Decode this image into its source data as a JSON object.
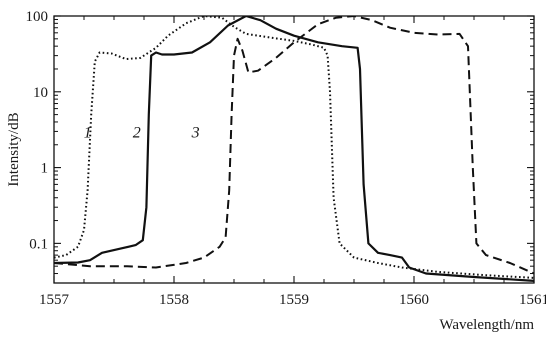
{
  "chart_data": {
    "type": "line",
    "title": "",
    "xlabel": "Wavelength/nm",
    "ylabel": "Intensity/dB",
    "xlim": [
      1557,
      1561
    ],
    "ylim": [
      0.03,
      100
    ],
    "yscale": "log",
    "grid": false,
    "x_ticks": [
      1557,
      1558,
      1559,
      1560,
      1561
    ],
    "y_ticks": [
      0.1,
      1,
      10,
      100
    ],
    "y_tick_labels": [
      "0.1",
      "1",
      "10",
      "100"
    ],
    "series": [
      {
        "name": "1",
        "line_style": "dotted",
        "color": "#111111",
        "label_at": [
          1557.28,
          2.5
        ],
        "points": [
          [
            1557.0,
            0.065
          ],
          [
            1557.1,
            0.07
          ],
          [
            1557.2,
            0.09
          ],
          [
            1557.25,
            0.15
          ],
          [
            1557.28,
            0.5
          ],
          [
            1557.31,
            5
          ],
          [
            1557.34,
            25
          ],
          [
            1557.38,
            33
          ],
          [
            1557.48,
            32
          ],
          [
            1557.6,
            27
          ],
          [
            1557.72,
            28
          ],
          [
            1557.85,
            38
          ],
          [
            1557.95,
            55
          ],
          [
            1558.1,
            80
          ],
          [
            1558.25,
            100
          ],
          [
            1558.4,
            95
          ],
          [
            1558.5,
            72
          ],
          [
            1558.6,
            58
          ],
          [
            1558.8,
            52
          ],
          [
            1559.0,
            47
          ],
          [
            1559.15,
            42
          ],
          [
            1559.25,
            38
          ],
          [
            1559.28,
            30
          ],
          [
            1559.3,
            10
          ],
          [
            1559.33,
            0.4
          ],
          [
            1559.38,
            0.1
          ],
          [
            1559.5,
            0.065
          ],
          [
            1559.7,
            0.055
          ],
          [
            1559.9,
            0.048
          ],
          [
            1560.2,
            0.042
          ],
          [
            1560.6,
            0.038
          ],
          [
            1561.0,
            0.035
          ]
        ]
      },
      {
        "name": "2",
        "line_style": "solid",
        "color": "#111111",
        "label_at": [
          1557.69,
          2.5
        ],
        "points": [
          [
            1557.0,
            0.055
          ],
          [
            1557.2,
            0.056
          ],
          [
            1557.3,
            0.06
          ],
          [
            1557.4,
            0.075
          ],
          [
            1557.55,
            0.085
          ],
          [
            1557.68,
            0.095
          ],
          [
            1557.74,
            0.11
          ],
          [
            1557.77,
            0.3
          ],
          [
            1557.79,
            5
          ],
          [
            1557.81,
            30
          ],
          [
            1557.85,
            33
          ],
          [
            1557.9,
            31
          ],
          [
            1558.0,
            31
          ],
          [
            1558.15,
            33
          ],
          [
            1558.3,
            45
          ],
          [
            1558.45,
            75
          ],
          [
            1558.6,
            100
          ],
          [
            1558.72,
            88
          ],
          [
            1558.85,
            68
          ],
          [
            1559.0,
            55
          ],
          [
            1559.2,
            45
          ],
          [
            1559.4,
            40
          ],
          [
            1559.53,
            38
          ],
          [
            1559.55,
            20
          ],
          [
            1559.58,
            0.6
          ],
          [
            1559.62,
            0.1
          ],
          [
            1559.7,
            0.075
          ],
          [
            1559.8,
            0.07
          ],
          [
            1559.9,
            0.065
          ],
          [
            1559.96,
            0.048
          ],
          [
            1560.1,
            0.04
          ],
          [
            1560.5,
            0.036
          ],
          [
            1561.0,
            0.032
          ]
        ]
      },
      {
        "name": "3",
        "line_style": "dashed",
        "color": "#111111",
        "label_at": [
          1558.18,
          2.5
        ],
        "points": [
          [
            1557.0,
            0.055
          ],
          [
            1557.3,
            0.05
          ],
          [
            1557.6,
            0.05
          ],
          [
            1557.85,
            0.048
          ],
          [
            1558.1,
            0.055
          ],
          [
            1558.25,
            0.065
          ],
          [
            1558.38,
            0.09
          ],
          [
            1558.43,
            0.12
          ],
          [
            1558.46,
            0.5
          ],
          [
            1558.48,
            5
          ],
          [
            1558.5,
            30
          ],
          [
            1558.53,
            50
          ],
          [
            1558.57,
            35
          ],
          [
            1558.62,
            18
          ],
          [
            1558.7,
            19
          ],
          [
            1558.85,
            28
          ],
          [
            1559.0,
            45
          ],
          [
            1559.2,
            78
          ],
          [
            1559.35,
            95
          ],
          [
            1559.5,
            100
          ],
          [
            1559.65,
            88
          ],
          [
            1559.8,
            70
          ],
          [
            1560.0,
            60
          ],
          [
            1560.2,
            57
          ],
          [
            1560.38,
            58
          ],
          [
            1560.45,
            40
          ],
          [
            1560.49,
            1
          ],
          [
            1560.52,
            0.1
          ],
          [
            1560.6,
            0.07
          ],
          [
            1560.8,
            0.055
          ],
          [
            1561.0,
            0.04
          ]
        ]
      }
    ]
  }
}
